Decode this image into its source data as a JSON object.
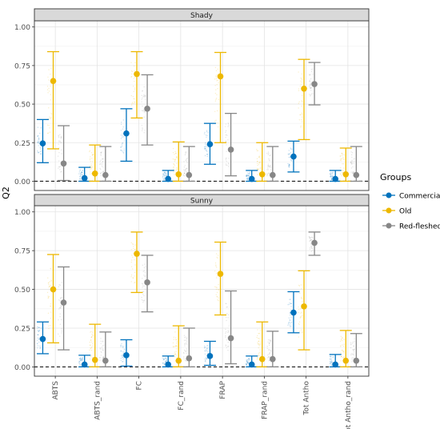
{
  "chart_data": {
    "type": "scatter",
    "ylabel": "Q2",
    "ylim": [
      -0.06,
      1.04
    ],
    "yticks": [
      0.0,
      0.25,
      0.5,
      0.75,
      1.0
    ],
    "ytick_labels": [
      "0.00",
      "0.25",
      "0.50",
      "0.75",
      "1.00"
    ],
    "categories": [
      "ABTS",
      "ABTS_rand",
      "FC",
      "FC_rand",
      "FRAP",
      "FRAP_rand",
      "Tot Antho",
      "Tot Antho_rand"
    ],
    "reference_line": 0,
    "legend": {
      "title": "Groups",
      "placement": "right",
      "entries": [
        {
          "label": "Commercial",
          "color": "#0072BD"
        },
        {
          "label": "Old",
          "color": "#EDB800"
        },
        {
          "label": "Red-fleshed",
          "color": "#878787"
        }
      ]
    },
    "panels": [
      {
        "strip": "Shady",
        "series": [
          {
            "group": "Commercial",
            "mean": [
              0.245,
              0.02,
              0.31,
              0.015,
              0.24,
              0.015,
              0.16,
              0.015
            ],
            "lower": [
              0.12,
              0.0,
              0.13,
              0.0,
              0.11,
              0.0,
              0.06,
              0.0
            ],
            "upper": [
              0.4,
              0.09,
              0.47,
              0.07,
              0.375,
              0.07,
              0.26,
              0.07
            ]
          },
          {
            "group": "Old",
            "mean": [
              0.65,
              0.05,
              0.695,
              0.045,
              0.68,
              0.045,
              0.6,
              0.045
            ],
            "lower": [
              0.21,
              0.0,
              0.41,
              0.0,
              0.25,
              0.0,
              0.27,
              0.0
            ],
            "upper": [
              0.84,
              0.235,
              0.84,
              0.255,
              0.835,
              0.25,
              0.79,
              0.215
            ]
          },
          {
            "group": "Red-fleshed",
            "mean": [
              0.115,
              0.04,
              0.47,
              0.04,
              0.205,
              0.04,
              0.63,
              0.04
            ],
            "lower": [
              0.005,
              0.0,
              0.235,
              0.0,
              0.035,
              0.0,
              0.495,
              0.0
            ],
            "upper": [
              0.36,
              0.225,
              0.69,
              0.225,
              0.44,
              0.225,
              0.77,
              0.225
            ]
          }
        ]
      },
      {
        "strip": "Sunny",
        "series": [
          {
            "group": "Commercial",
            "mean": [
              0.18,
              0.015,
              0.075,
              0.015,
              0.07,
              0.015,
              0.35,
              0.015
            ],
            "lower": [
              0.085,
              0.0,
              0.005,
              0.0,
              0.01,
              0.0,
              0.22,
              0.0
            ],
            "upper": [
              0.29,
              0.075,
              0.175,
              0.07,
              0.165,
              0.07,
              0.485,
              0.08
            ]
          },
          {
            "group": "Old",
            "mean": [
              0.5,
              0.045,
              0.73,
              0.04,
              0.6,
              0.05,
              0.39,
              0.04
            ],
            "lower": [
              0.155,
              0.0,
              0.48,
              0.0,
              0.335,
              0.0,
              0.11,
              0.0
            ],
            "upper": [
              0.725,
              0.275,
              0.87,
              0.265,
              0.805,
              0.29,
              0.62,
              0.235
            ]
          },
          {
            "group": "Red-fleshed",
            "mean": [
              0.415,
              0.04,
              0.545,
              0.055,
              0.185,
              0.05,
              0.8,
              0.04
            ],
            "lower": [
              0.11,
              0.0,
              0.355,
              0.0,
              0.02,
              0.0,
              0.72,
              0.0
            ],
            "upper": [
              0.645,
              0.225,
              0.72,
              0.25,
              0.49,
              0.23,
              0.87,
              0.215
            ]
          }
        ]
      }
    ]
  }
}
